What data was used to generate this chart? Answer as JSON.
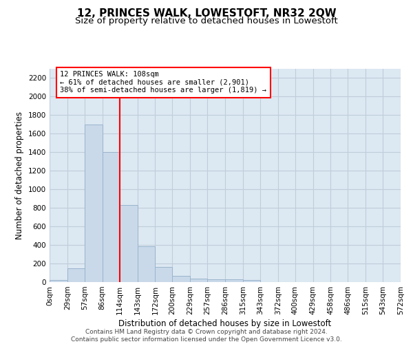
{
  "title": "12, PRINCES WALK, LOWESTOFT, NR32 2QW",
  "subtitle": "Size of property relative to detached houses in Lowestoft",
  "xlabel": "Distribution of detached houses by size in Lowestoft",
  "ylabel": "Number of detached properties",
  "bin_edges": [
    0,
    29,
    57,
    86,
    114,
    143,
    172,
    200,
    229,
    257,
    286,
    315,
    343,
    372,
    400,
    429,
    458,
    486,
    515,
    543,
    572
  ],
  "bar_heights": [
    25,
    150,
    1700,
    1400,
    830,
    385,
    165,
    65,
    35,
    30,
    30,
    20,
    0,
    0,
    0,
    0,
    0,
    0,
    0,
    0
  ],
  "bar_color": "#c9d9ea",
  "bar_edgecolor": "#9ab4cc",
  "grid_color": "#c0ceda",
  "background_color": "#dce8f2",
  "red_line_x": 114,
  "annotation_text": "12 PRINCES WALK: 108sqm\n← 61% of detached houses are smaller (2,901)\n38% of semi-detached houses are larger (1,819) →",
  "ylim_max": 2300,
  "yticks": [
    0,
    200,
    400,
    600,
    800,
    1000,
    1200,
    1400,
    1600,
    1800,
    2000,
    2200
  ],
  "footer_line1": "Contains HM Land Registry data © Crown copyright and database right 2024.",
  "footer_line2": "Contains public sector information licensed under the Open Government Licence v3.0.",
  "title_fontsize": 11,
  "subtitle_fontsize": 9.5,
  "axis_label_fontsize": 8.5,
  "tick_fontsize": 7.5,
  "annotation_fontsize": 7.5,
  "footer_fontsize": 6.5
}
